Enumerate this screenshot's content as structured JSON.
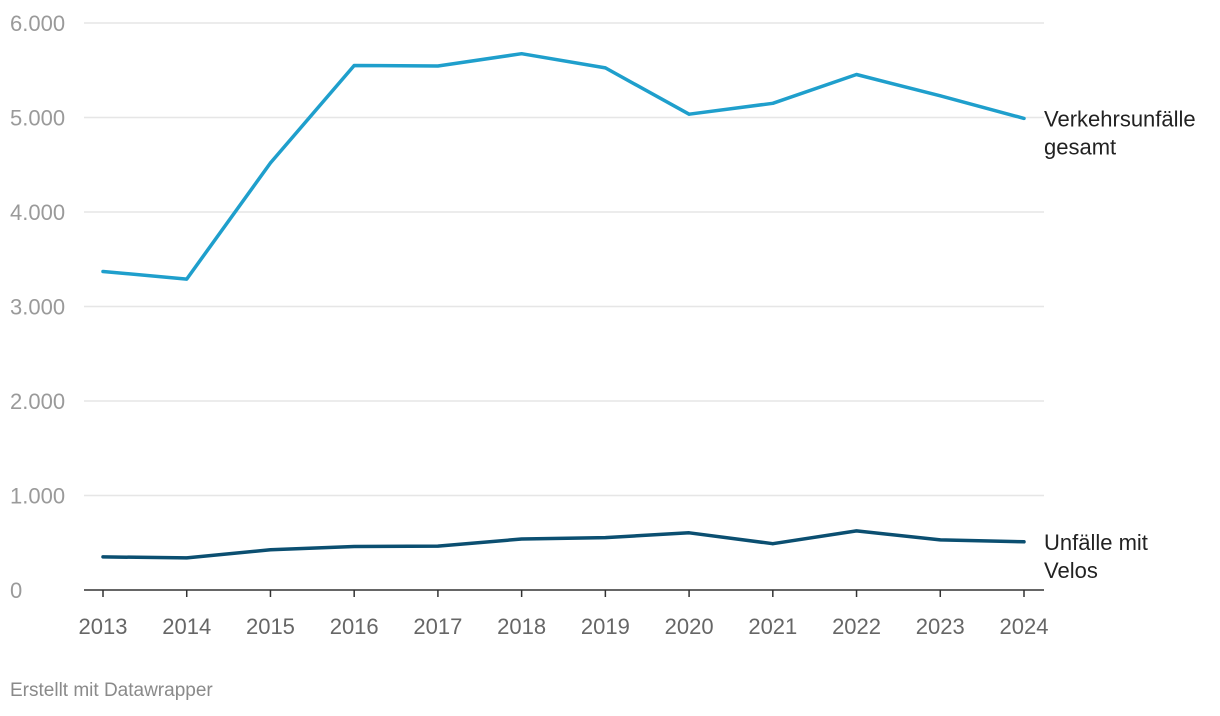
{
  "chart_data": {
    "type": "line",
    "x": [
      "2013",
      "2014",
      "2015",
      "2016",
      "2017",
      "2018",
      "2019",
      "2020",
      "2021",
      "2022",
      "2023",
      "2024"
    ],
    "series": [
      {
        "name": "Verkehrsunfälle gesamt",
        "label_lines": [
          "Verkehrsunfälle",
          "gesamt"
        ],
        "color": "#1f9fcc",
        "values": [
          3370,
          3290,
          4520,
          5550,
          5545,
          5675,
          5525,
          5035,
          5150,
          5455,
          5230,
          4990
        ]
      },
      {
        "name": "Unfälle mit Velos",
        "label_lines": [
          "Unfälle mit",
          "Velos"
        ],
        "color": "#0b4f71",
        "values": [
          350,
          340,
          425,
          460,
          465,
          540,
          555,
          605,
          490,
          625,
          530,
          510
        ]
      }
    ],
    "ylim": [
      0,
      6000
    ],
    "yticks": [
      0,
      1000,
      2000,
      3000,
      4000,
      5000,
      6000
    ],
    "ytick_labels": [
      "0",
      "1.000",
      "2.000",
      "3.000",
      "4.000",
      "5.000",
      "6.000"
    ],
    "xlabel": "",
    "ylabel": "",
    "grid": true
  },
  "footer": "Erstellt mit Datawrapper"
}
